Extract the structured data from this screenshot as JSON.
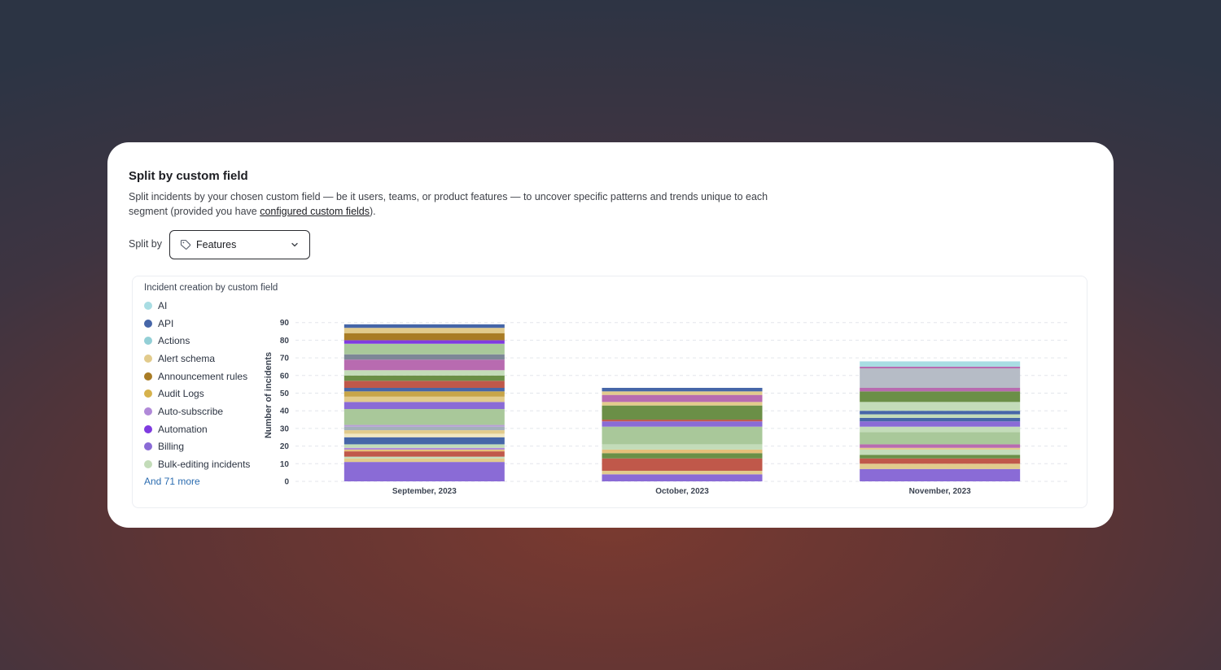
{
  "card": {
    "title": "Split by custom field",
    "description_before": "Split incidents by your chosen custom field — be it users, teams, or product features — to uncover specific patterns and trends unique to each segment (provided you have ",
    "description_link": "configured custom fields",
    "description_after": ")."
  },
  "split": {
    "label": "Split by",
    "selected": "Features",
    "icon": "tag-icon",
    "dropdown_icon": "chevron-down-icon"
  },
  "legend": {
    "items": [
      {
        "label": "AI",
        "color": "#a9dde3"
      },
      {
        "label": "API",
        "color": "#4666a8"
      },
      {
        "label": "Actions",
        "color": "#93cfd6"
      },
      {
        "label": "Alert schema",
        "color": "#e2cb8c"
      },
      {
        "label": "Announcement rules",
        "color": "#a97c25"
      },
      {
        "label": "Audit Logs",
        "color": "#d6b24c"
      },
      {
        "label": "Auto-subscribe",
        "color": "#b089d8"
      },
      {
        "label": "Automation",
        "color": "#7f3be0"
      },
      {
        "label": "Billing",
        "color": "#8a6bd6"
      },
      {
        "label": "Bulk-editing incidents",
        "color": "#c3dcb9"
      }
    ],
    "more_label": "And 71 more"
  },
  "chart_data": {
    "type": "bar",
    "stacked": true,
    "title": "Incident creation by custom field",
    "ylabel": "Number of incidents",
    "xlabel": "",
    "ylim": [
      0,
      95
    ],
    "yticks": [
      0,
      10,
      20,
      30,
      40,
      50,
      60,
      70,
      80,
      90
    ],
    "grid": true,
    "categories": [
      "September, 2023",
      "October, 2023",
      "November, 2023"
    ],
    "stacks": [
      {
        "category": "September, 2023",
        "segments": [
          {
            "value": 11,
            "color": "#8a6bd6"
          },
          {
            "value": 2,
            "color": "#e2cb8c"
          },
          {
            "value": 1,
            "color": "#c3dcb9"
          },
          {
            "value": 3,
            "color": "#c0584a"
          },
          {
            "value": 1,
            "color": "#e6c07a"
          },
          {
            "value": 1,
            "color": "#b089d8"
          },
          {
            "value": 2,
            "color": "#c3dcb9"
          },
          {
            "value": 4,
            "color": "#4666a8"
          },
          {
            "value": 2,
            "color": "#f0e6c0"
          },
          {
            "value": 2,
            "color": "#e2cb8c"
          },
          {
            "value": 2,
            "color": "#a3b0bb"
          },
          {
            "value": 1,
            "color": "#b7a0d6"
          },
          {
            "value": 9,
            "color": "#a9c89a"
          },
          {
            "value": 4,
            "color": "#8a6bd6"
          },
          {
            "value": 3,
            "color": "#e2cb8c"
          },
          {
            "value": 3,
            "color": "#c8a548"
          },
          {
            "value": 2,
            "color": "#4666a8"
          },
          {
            "value": 4,
            "color": "#c0584a"
          },
          {
            "value": 3,
            "color": "#6b8f47"
          },
          {
            "value": 3,
            "color": "#c3dcb9"
          },
          {
            "value": 6,
            "color": "#b86bb0"
          },
          {
            "value": 3,
            "color": "#7d8797"
          },
          {
            "value": 6,
            "color": "#a9c89a"
          },
          {
            "value": 2,
            "color": "#7f3be0"
          },
          {
            "value": 4,
            "color": "#a97c25"
          },
          {
            "value": 3,
            "color": "#e2cb8c"
          },
          {
            "value": 2,
            "color": "#4666a8"
          }
        ]
      },
      {
        "category": "October, 2023",
        "segments": [
          {
            "value": 4,
            "color": "#8a6bd6"
          },
          {
            "value": 2,
            "color": "#e2cb8c"
          },
          {
            "value": 7,
            "color": "#c0584a"
          },
          {
            "value": 3,
            "color": "#6b8f47"
          },
          {
            "value": 2,
            "color": "#e6c07a"
          },
          {
            "value": 3,
            "color": "#c3dcb9"
          },
          {
            "value": 10,
            "color": "#a9c89a"
          },
          {
            "value": 3,
            "color": "#8a6bd6"
          },
          {
            "value": 1,
            "color": "#c0584a"
          },
          {
            "value": 8,
            "color": "#6b8f47"
          },
          {
            "value": 2,
            "color": "#e2cb8c"
          },
          {
            "value": 4,
            "color": "#b86bb0"
          },
          {
            "value": 2,
            "color": "#e2cb8c"
          },
          {
            "value": 2,
            "color": "#4666a8"
          }
        ]
      },
      {
        "category": "November, 2023",
        "segments": [
          {
            "value": 7,
            "color": "#8a6bd6"
          },
          {
            "value": 3,
            "color": "#e2cb8c"
          },
          {
            "value": 3,
            "color": "#c0584a"
          },
          {
            "value": 2,
            "color": "#6b8f47"
          },
          {
            "value": 3,
            "color": "#c3dcb9"
          },
          {
            "value": 1,
            "color": "#e2cb8c"
          },
          {
            "value": 2,
            "color": "#b86bb0"
          },
          {
            "value": 7,
            "color": "#a9c89a"
          },
          {
            "value": 3,
            "color": "#c3dcb9"
          },
          {
            "value": 3,
            "color": "#8a6bd6"
          },
          {
            "value": 2,
            "color": "#4666a8"
          },
          {
            "value": 2,
            "color": "#c3dcb9"
          },
          {
            "value": 2,
            "color": "#4666a8"
          },
          {
            "value": 5,
            "color": "#c3dcb9"
          },
          {
            "value": 6,
            "color": "#6b8f47"
          },
          {
            "value": 2,
            "color": "#b86bb0"
          },
          {
            "value": 11,
            "color": "#b6bcc6"
          },
          {
            "value": 1,
            "color": "#b86bb0"
          },
          {
            "value": 3,
            "color": "#a9dde3"
          }
        ]
      }
    ]
  }
}
